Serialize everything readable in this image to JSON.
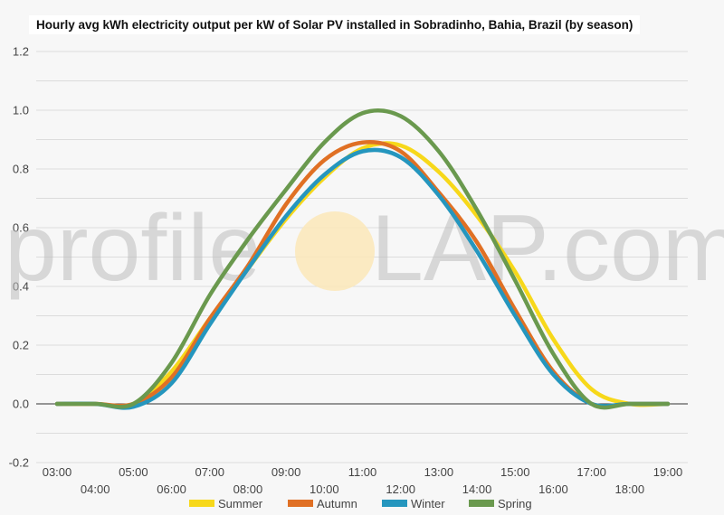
{
  "chart_data": {
    "type": "line",
    "title": "Hourly avg kWh electricity output per kW of Solar PV installed in Sobradinho, Bahia, Brazil (by season)",
    "xlabel": "",
    "ylabel": "",
    "ylim": [
      -0.2,
      1.2
    ],
    "yticks": [
      "-0.2",
      "0.0",
      "0.2",
      "0.4",
      "0.6",
      "0.8",
      "1.0",
      "1.2"
    ],
    "grid": true,
    "legend_position": "bottom",
    "x": [
      "03:00",
      "04:00",
      "05:00",
      "06:00",
      "07:00",
      "08:00",
      "09:00",
      "10:00",
      "11:00",
      "12:00",
      "13:00",
      "14:00",
      "15:00",
      "16:00",
      "17:00",
      "18:00",
      "19:00"
    ],
    "series": [
      {
        "name": "Summer",
        "color": "#f7d81a",
        "values": [
          0,
          0,
          0,
          0.11,
          0.29,
          0.46,
          0.63,
          0.77,
          0.87,
          0.88,
          0.79,
          0.64,
          0.45,
          0.22,
          0.05,
          0,
          0
        ]
      },
      {
        "name": "Autumn",
        "color": "#e07024",
        "values": [
          0,
          0,
          0,
          0.09,
          0.29,
          0.47,
          0.68,
          0.83,
          0.89,
          0.86,
          0.72,
          0.55,
          0.32,
          0.11,
          0,
          0,
          0
        ]
      },
      {
        "name": "Winter",
        "color": "#2596be",
        "values": [
          0,
          0,
          -0.01,
          0.07,
          0.27,
          0.46,
          0.64,
          0.78,
          0.86,
          0.84,
          0.71,
          0.52,
          0.3,
          0.1,
          0,
          0,
          0
        ]
      },
      {
        "name": "Spring",
        "color": "#6a994e",
        "values": [
          0,
          0,
          0,
          0.14,
          0.37,
          0.56,
          0.73,
          0.89,
          0.99,
          0.98,
          0.86,
          0.66,
          0.42,
          0.17,
          0,
          0,
          0
        ]
      }
    ]
  },
  "watermark": {
    "left": "profile",
    "right": "LAP.com",
    "sun_color": "#fbe8b8"
  }
}
